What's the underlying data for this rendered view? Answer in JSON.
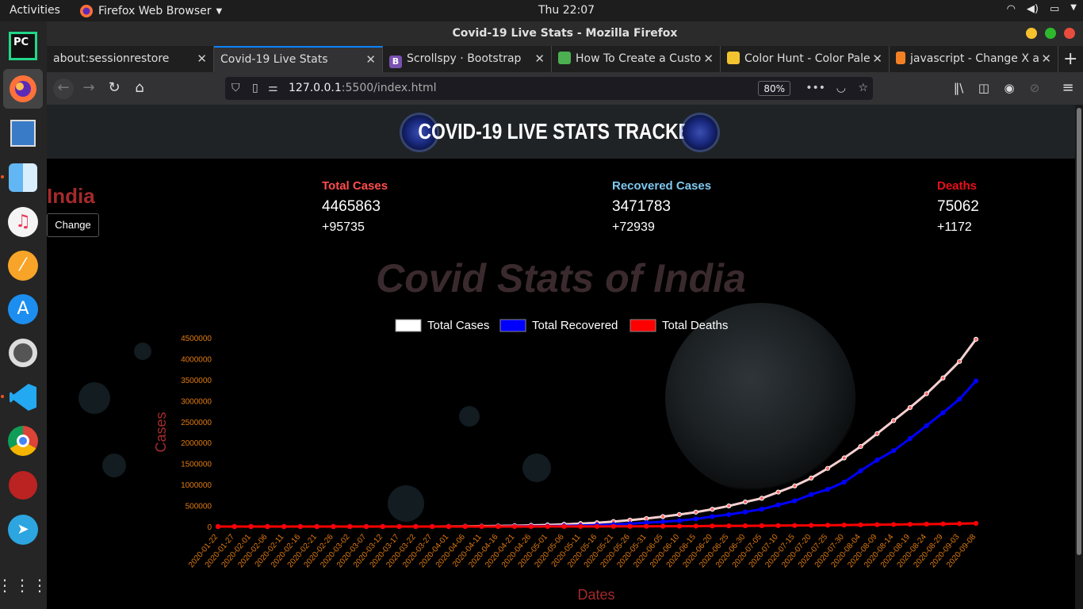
{
  "topbar": {
    "activities": "Activities",
    "app": "Firefox Web Browser",
    "clock": "Thu 22:07"
  },
  "window": {
    "title": "Covid-19 Live Stats - Mozilla Firefox"
  },
  "tabs": [
    {
      "label": "about:sessionrestore"
    },
    {
      "label": "Covid-19 Live Stats"
    },
    {
      "label": "Scrollspy · Bootstrap"
    },
    {
      "label": "How To Create a Custo"
    },
    {
      "label": "Color Hunt - Color Pale"
    },
    {
      "label": "javascript - Change X a"
    }
  ],
  "nav": {
    "url_host": "127.0.0.1",
    "url_rest": ":5500/index.html",
    "zoom": "80%"
  },
  "page": {
    "header_title": "COVID-19 LIVE STATS TRACKER",
    "country": "India",
    "change_button": "Change",
    "stats": [
      {
        "label": "Total Cases",
        "value": "4465863",
        "increase": "+95735",
        "color": "#ff4d4d"
      },
      {
        "label": "Recovered Cases",
        "value": "3471783",
        "increase": "+72939",
        "color": "#7ec8f0"
      },
      {
        "label": "Deaths",
        "value": "75062",
        "increase": "+1172",
        "color": "#e8101a"
      }
    ],
    "chart_title": "Covid Stats of India"
  },
  "chart_data": {
    "type": "line",
    "xlabel": "Dates",
    "ylabel": "Cases",
    "ylim": [
      0,
      4500000
    ],
    "yticks": [
      0,
      500000,
      1000000,
      1500000,
      2000000,
      2500000,
      3000000,
      3500000,
      4000000,
      4500000
    ],
    "x": [
      "2020-01-22",
      "2020-01-27",
      "2020-02-01",
      "2020-02-06",
      "2020-02-11",
      "2020-02-16",
      "2020-02-21",
      "2020-02-26",
      "2020-03-02",
      "2020-03-07",
      "2020-03-12",
      "2020-03-17",
      "2020-03-22",
      "2020-03-27",
      "2020-04-01",
      "2020-04-06",
      "2020-04-11",
      "2020-04-16",
      "2020-04-21",
      "2020-04-26",
      "2020-05-01",
      "2020-05-06",
      "2020-05-11",
      "2020-05-16",
      "2020-05-21",
      "2020-05-26",
      "2020-05-31",
      "2020-06-05",
      "2020-06-10",
      "2020-06-15",
      "2020-06-20",
      "2020-06-25",
      "2020-06-30",
      "2020-07-05",
      "2020-07-10",
      "2020-07-15",
      "2020-07-20",
      "2020-07-25",
      "2020-07-30",
      "2020-08-04",
      "2020-08-09",
      "2020-08-14",
      "2020-08-19",
      "2020-08-24",
      "2020-08-29",
      "2020-09-03",
      "2020-09-08"
    ],
    "series": [
      {
        "name": "Total Cases",
        "color": "#ffffff",
        "values": [
          0,
          0,
          0,
          0,
          0,
          0,
          0,
          0,
          5,
          30,
          75,
          140,
          400,
          880,
          1800,
          4800,
          8400,
          13400,
          20000,
          27900,
          37300,
          52900,
          70800,
          90700,
          118400,
          151800,
          190600,
          236700,
          286600,
          343000,
          411700,
          490400,
          585500,
          673200,
          820900,
          968900,
          1155200,
          1385500,
          1635000,
          1908300,
          2215100,
          2526200,
          2836900,
          3167300,
          3542700,
          3936700,
          4465863
        ]
      },
      {
        "name": "Total Recovered",
        "color": "#0000ff",
        "values": [
          0,
          0,
          0,
          0,
          0,
          0,
          0,
          0,
          3,
          3,
          4,
          14,
          23,
          75,
          160,
          400,
          1000,
          2300,
          4400,
          7100,
          10600,
          16000,
          24400,
          34800,
          48500,
          65700,
          91900,
          114100,
          141000,
          180000,
          238000,
          285600,
          348000,
          413000,
          515300,
          612800,
          763400,
          885600,
          1057800,
          1328000,
          1583500,
          1808900,
          2096600,
          2404600,
          2713900,
          3037200,
          3471783
        ]
      },
      {
        "name": "Total Deaths",
        "color": "#ff0000",
        "values": [
          0,
          0,
          0,
          0,
          0,
          0,
          0,
          0,
          0,
          0,
          1,
          3,
          7,
          19,
          38,
          124,
          242,
          452,
          686,
          939,
          1223,
          1783,
          2293,
          2872,
          3584,
          4337,
          5408,
          6649,
          8102,
          9900,
          13254,
          15685,
          17400,
          19268,
          22674,
          24915,
          28084,
          31358,
          35747,
          39795,
          44386,
          48040,
          52889,
          57542,
          62550,
          68472,
          75062
        ]
      }
    ]
  }
}
